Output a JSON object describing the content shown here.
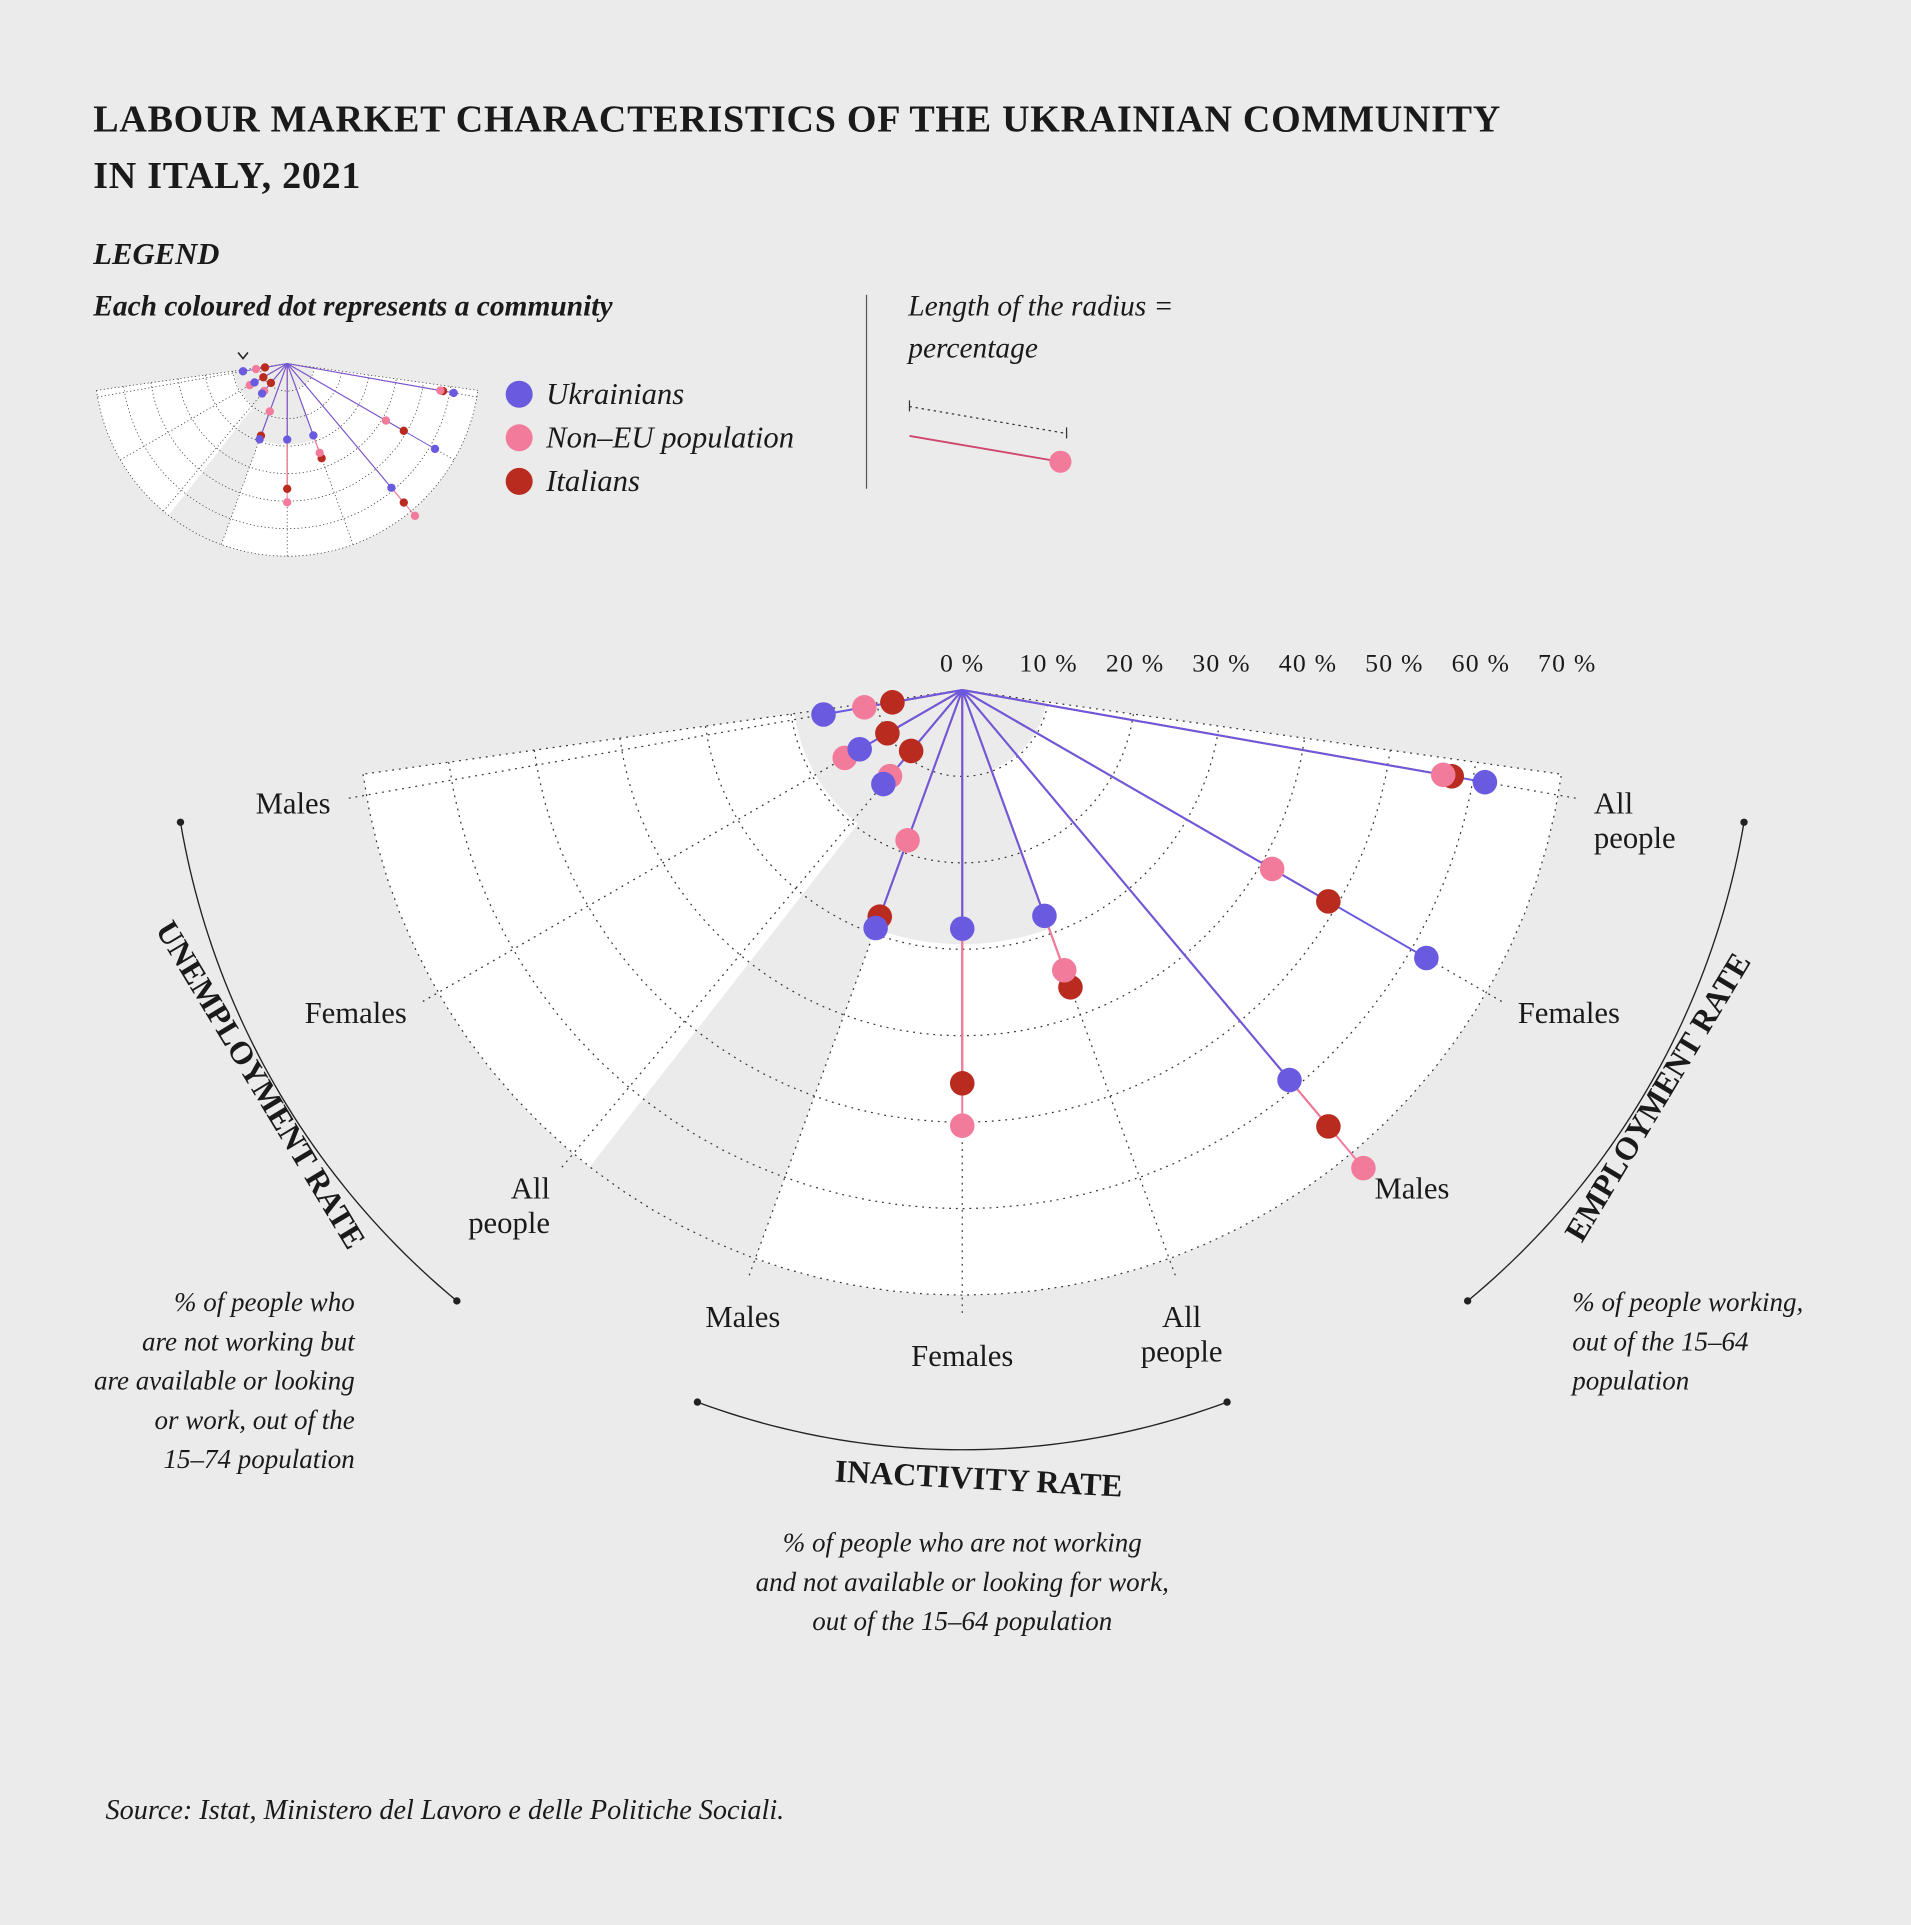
{
  "chart_data": {
    "type": "radial_dot",
    "title": [
      "LABOUR MARKET CHARACTERISTICS OF THE UKRAINIAN COMMUNITY",
      "IN ITALY, 2021"
    ],
    "legend": {
      "heading": "LEGEND",
      "note": "Each coloured dot represents a community",
      "radius_note": [
        "Length of the radius =",
        "percentage"
      ]
    },
    "categories": [
      "Males",
      "Females",
      "All people",
      "Males",
      "Females",
      "All people",
      "Males",
      "Females",
      "All people"
    ],
    "groups": [
      {
        "name": "UNEMPLOYMENT RATE",
        "description": [
          "% of people who",
          "are not working but",
          "are available or looking",
          "or work, out of the",
          "15–74 population"
        ]
      },
      {
        "name": "INACTIVITY RATE",
        "description": [
          "% of people who are not working",
          "and not available or looking for work,",
          "out of the 15–64 population"
        ]
      },
      {
        "name": "EMPLOYMENT RATE",
        "description": [
          "% of people working,",
          "out of the 15–64",
          "population"
        ]
      }
    ],
    "series": [
      {
        "name": "Ukrainians",
        "color": "#6a5ae0",
        "values": [
          16.3,
          13.7,
          14.2,
          29.3,
          27.6,
          27.8,
          58.9,
          62.0,
          61.4
        ]
      },
      {
        "name": "Non–EU population",
        "color": "#f27b9b",
        "values": [
          11.5,
          15.7,
          13.0,
          18.5,
          50.4,
          34.5,
          72.2,
          41.4,
          56.5
        ]
      },
      {
        "name": "Italians",
        "color": "#b92a1f",
        "values": [
          8.2,
          10.0,
          9.2,
          27.9,
          45.5,
          36.6,
          65.9,
          48.9,
          57.5
        ]
      }
    ],
    "rlim": [
      0,
      70
    ],
    "rticks": [
      {
        "value": 0,
        "label": "0 %"
      },
      {
        "value": 10,
        "label": "10 %"
      },
      {
        "value": 20,
        "label": "20 %"
      },
      {
        "value": 30,
        "label": "30 %"
      },
      {
        "value": 40,
        "label": "40 %"
      },
      {
        "value": 50,
        "label": "50 %"
      },
      {
        "value": 60,
        "label": "60 %"
      },
      {
        "value": 70,
        "label": "70 %"
      }
    ],
    "grid": true,
    "source": "Source: Istat, Ministero del Lavoro e delle Politiche Sociali."
  }
}
